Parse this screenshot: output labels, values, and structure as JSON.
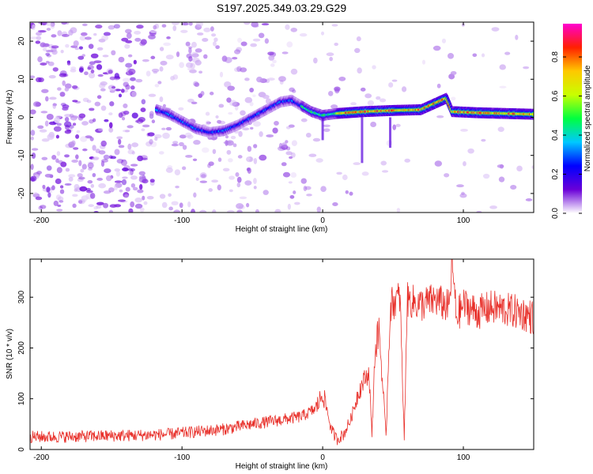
{
  "title": "S197.2025.349.03.29.G29",
  "chart_data": [
    {
      "type": "heatmap",
      "xlabel": "Height of straight line (km)",
      "ylabel": "Frequency (Hz)",
      "xlim": [
        -208,
        150
      ],
      "ylim": [
        -25,
        25
      ],
      "xticks": [
        -200,
        -100,
        0,
        100
      ],
      "yticks": [
        -20,
        -10,
        0,
        10,
        20
      ],
      "ridge": {
        "x": [
          -118,
          -110,
          -100,
          -90,
          -80,
          -70,
          -60,
          -50,
          -40,
          -30,
          -22,
          -15,
          -8,
          0,
          10,
          30,
          50,
          70,
          85,
          88,
          92,
          110,
          130,
          150
        ],
        "y": [
          2,
          1,
          -1,
          -3,
          -4,
          -3.5,
          -2,
          0,
          2,
          4,
          4.5,
          3,
          1.5,
          0.5,
          1,
          1.5,
          1.8,
          2,
          4.5,
          5,
          1.5,
          1.2,
          1,
          0.8
        ]
      },
      "colorbar": {
        "label": "Normalized spectral amplitude",
        "ticks": [
          0.0,
          0.2,
          0.4,
          0.6,
          0.8
        ],
        "tick_labels": [
          "0.0",
          "0.2",
          "0.4",
          "0.6",
          "0.8"
        ],
        "range": [
          0,
          0.97
        ],
        "colors": [
          "#ffffff",
          "#6a00d8",
          "#0000ff",
          "#00c8ff",
          "#00ff40",
          "#c8ff00",
          "#ffc800",
          "#ff2000",
          "#ff00d0"
        ]
      }
    },
    {
      "type": "line",
      "xlabel": "Height of straight line (km)",
      "ylabel": "SNR (10 * v/v)",
      "xlim": [
        -208,
        150
      ],
      "ylim": [
        0,
        375
      ],
      "xticks": [
        -200,
        -100,
        0,
        100
      ],
      "yticks": [
        0,
        100,
        200,
        300
      ],
      "color": "#e8302a",
      "series": [
        {
          "name": "SNR",
          "x": [
            -208,
            -190,
            -170,
            -150,
            -130,
            -110,
            -90,
            -70,
            -50,
            -30,
            -15,
            -5,
            0,
            3,
            6,
            10,
            15,
            20,
            25,
            30,
            33,
            35,
            37,
            40,
            45,
            48,
            50,
            55,
            58,
            60,
            70,
            80,
            90,
            92,
            95,
            100,
            110,
            120,
            130,
            140,
            150
          ],
          "y": [
            25,
            25,
            26,
            27,
            28,
            30,
            35,
            40,
            50,
            58,
            65,
            80,
            110,
            80,
            40,
            20,
            30,
            60,
            110,
            140,
            150,
            25,
            180,
            240,
            25,
            280,
            290,
            300,
            20,
            295,
            285,
            295,
            280,
            370,
            260,
            285,
            270,
            280,
            275,
            270,
            260
          ]
        }
      ]
    }
  ]
}
